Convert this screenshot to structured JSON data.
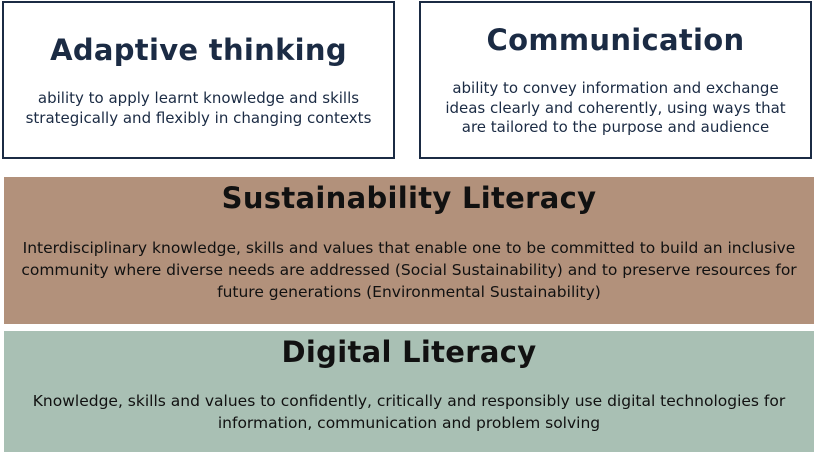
{
  "adaptive_thinking": {
    "title": "Adaptive thinking",
    "description": "ability to apply learnt knowledge and skills strategically and flexibly in changing contexts"
  },
  "communication": {
    "title": "Communication",
    "description": "ability to convey information and exchange ideas clearly and coherently, using ways that are tailored to the purpose and audience"
  },
  "sustainability_literacy": {
    "title": "Sustainability Literacy",
    "description": "Interdisciplinary knowledge, skills and values that enable one to be committed to build an inclusive community where diverse needs are addressed (Social Sustainability) and to preserve resources for future generations (Environmental Sustainability)"
  },
  "digital_literacy": {
    "title": "Digital Literacy",
    "description": "Knowledge, skills and values to confidently, critically and responsibly use digital technologies for information, communication and problem solving"
  },
  "colors": {
    "card_border": "#1b2b44",
    "sustainability_band": "#b2917b",
    "digital_band": "#a9c0b4"
  }
}
